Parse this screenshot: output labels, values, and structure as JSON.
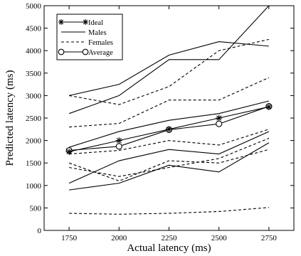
{
  "chart_data": {
    "type": "line",
    "xlabel": "Actual latency (ms)",
    "ylabel": "Predicted latency (ms)",
    "xlim": [
      1625,
      2875
    ],
    "ylim": [
      0,
      5000
    ],
    "xticks": [
      1750,
      2000,
      2250,
      2500,
      2750
    ],
    "yticks": [
      0,
      500,
      1000,
      1500,
      2000,
      2500,
      3000,
      3500,
      4000,
      4500,
      5000
    ],
    "grid": false,
    "legend_position": "top-left",
    "x": [
      1750,
      2000,
      2250,
      2500,
      2750
    ],
    "legend": [
      {
        "label": "Ideal",
        "style": "solid",
        "marker": "star"
      },
      {
        "label": "Males",
        "style": "solid",
        "marker": "none"
      },
      {
        "label": "Females",
        "style": "dashed",
        "marker": "none"
      },
      {
        "label": "Average",
        "style": "solid",
        "marker": "circle"
      }
    ],
    "series": [
      {
        "name": "Ideal",
        "group": "Ideal",
        "values": [
          1750,
          2000,
          2250,
          2500,
          2750
        ]
      },
      {
        "name": "Average",
        "group": "Average",
        "values": [
          1780,
          1870,
          2240,
          2370,
          2760
        ]
      },
      {
        "group": "Males",
        "values": [
          2600,
          3000,
          3800,
          3800,
          5000
        ]
      },
      {
        "group": "Males",
        "values": [
          3000,
          3250,
          3900,
          4200,
          4100
        ]
      },
      {
        "group": "Males",
        "values": [
          1850,
          2200,
          2450,
          2600,
          2880
        ]
      },
      {
        "group": "Males",
        "values": [
          1050,
          1550,
          1800,
          1700,
          2200
        ]
      },
      {
        "group": "Males",
        "values": [
          900,
          1050,
          1450,
          1300,
          1950
        ]
      },
      {
        "group": "Females",
        "values": [
          3000,
          2800,
          3200,
          4000,
          4250
        ]
      },
      {
        "group": "Females",
        "values": [
          2300,
          2380,
          2900,
          2900,
          3400
        ]
      },
      {
        "group": "Females",
        "values": [
          1700,
          1780,
          2000,
          1900,
          2250
        ]
      },
      {
        "group": "Females",
        "values": [
          1500,
          1100,
          1550,
          1500,
          1800
        ]
      },
      {
        "group": "Females",
        "values": [
          1400,
          1200,
          1400,
          1600,
          2050
        ]
      },
      {
        "group": "Females",
        "values": [
          380,
          360,
          380,
          420,
          510
        ]
      }
    ]
  }
}
